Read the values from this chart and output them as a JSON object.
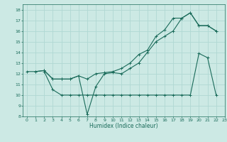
{
  "xlabel": "Humidex (Indice chaleur)",
  "bg_color": "#cce9e4",
  "grid_color": "#b0d8d3",
  "line_color": "#1a6b5a",
  "xlim": [
    -0.5,
    23
  ],
  "ylim": [
    8,
    18.5
  ],
  "xticks": [
    0,
    1,
    2,
    3,
    4,
    5,
    6,
    7,
    8,
    9,
    10,
    11,
    12,
    13,
    14,
    15,
    16,
    17,
    18,
    19,
    20,
    21,
    22,
    23
  ],
  "yticks": [
    8,
    9,
    10,
    11,
    12,
    13,
    14,
    15,
    16,
    17,
    18
  ],
  "line1_x": [
    0,
    1,
    2,
    3,
    4,
    5,
    6,
    7,
    8,
    9,
    10,
    11,
    12,
    13,
    14,
    15,
    16,
    17,
    18,
    19,
    20,
    21,
    22
  ],
  "line1_y": [
    12.2,
    12.2,
    12.3,
    11.5,
    11.5,
    11.5,
    11.8,
    11.5,
    12.0,
    12.1,
    12.2,
    12.5,
    13.0,
    13.8,
    14.2,
    15.5,
    16.1,
    17.2,
    17.2,
    17.7,
    16.5,
    16.5,
    16.0
  ],
  "line2_x": [
    1,
    2,
    3,
    4,
    5,
    6,
    7,
    8,
    9,
    10,
    11,
    12,
    13,
    14,
    15,
    16,
    17,
    18,
    19,
    20,
    21,
    22
  ],
  "line2_y": [
    12.2,
    12.3,
    11.5,
    11.5,
    11.5,
    11.8,
    8.2,
    10.8,
    12.0,
    12.1,
    12.0,
    12.5,
    13.0,
    14.0,
    15.0,
    15.5,
    16.0,
    17.2,
    17.7,
    16.5,
    16.5,
    16.0
  ],
  "line3_x": [
    2,
    3,
    4,
    5,
    6,
    7,
    8,
    9,
    10,
    11,
    12,
    13,
    14,
    15,
    16,
    17,
    18,
    19,
    20,
    21,
    22
  ],
  "line3_y": [
    12.2,
    10.5,
    10.0,
    10.0,
    10.0,
    10.0,
    10.0,
    10.0,
    10.0,
    10.0,
    10.0,
    10.0,
    10.0,
    10.0,
    10.0,
    10.0,
    10.0,
    10.0,
    13.9,
    13.5,
    10.0
  ]
}
